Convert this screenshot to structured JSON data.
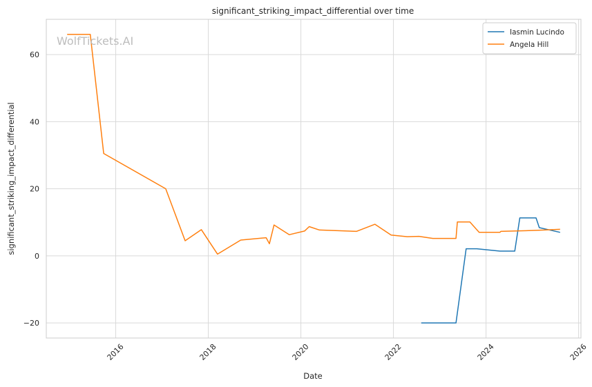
{
  "chart_data": {
    "type": "line",
    "title": "significant_striking_impact_differential over time",
    "xlabel": "Date",
    "ylabel": "significant_striking_impact_differential",
    "watermark": "WolfTickets.AI",
    "xlim": [
      2014.5,
      2026.05
    ],
    "ylim": [
      -24.5,
      70.5
    ],
    "xticks": [
      {
        "value": 2016,
        "label": "2016"
      },
      {
        "value": 2018,
        "label": "2018"
      },
      {
        "value": 2020,
        "label": "2020"
      },
      {
        "value": 2022,
        "label": "2022"
      },
      {
        "value": 2024,
        "label": "2024"
      },
      {
        "value": 2026,
        "label": "2026"
      }
    ],
    "yticks": [
      {
        "value": -20,
        "label": "−20"
      },
      {
        "value": 0,
        "label": "0"
      },
      {
        "value": 20,
        "label": "20"
      },
      {
        "value": 40,
        "label": "40"
      },
      {
        "value": 60,
        "label": "60"
      }
    ],
    "grid": true,
    "legend_position": "top-right",
    "series": [
      {
        "name": "Iasmin Lucindo",
        "color": "#1f77b4",
        "x": [
          2022.6,
          2023.35,
          2023.57,
          2023.8,
          2024.3,
          2024.62,
          2024.73,
          2025.08,
          2025.15,
          2025.6
        ],
        "y": [
          -20,
          -20,
          2.1,
          2.1,
          1.4,
          1.4,
          11.3,
          11.3,
          8.4,
          7.0
        ]
      },
      {
        "name": "Angela Hill",
        "color": "#ff7f0e",
        "x": [
          2014.95,
          2015.45,
          2015.74,
          2017.08,
          2017.5,
          2017.85,
          2018.2,
          2018.7,
          2019.25,
          2019.32,
          2019.42,
          2019.75,
          2020.08,
          2020.18,
          2020.4,
          2021.2,
          2021.6,
          2021.95,
          2022.3,
          2022.55,
          2022.85,
          2023.35,
          2023.38,
          2023.65,
          2023.85,
          2024.3,
          2024.32,
          2024.6,
          2025.1,
          2025.6
        ],
        "y": [
          66,
          66,
          30.5,
          20,
          4.5,
          7.8,
          0.5,
          4.7,
          5.4,
          3.6,
          9.2,
          6.3,
          7.4,
          8.7,
          7.7,
          7.3,
          9.4,
          6.2,
          5.7,
          5.8,
          5.2,
          5.2,
          10.1,
          10.1,
          7.0,
          7.0,
          7.3,
          7.4,
          7.6,
          7.9
        ]
      }
    ]
  }
}
